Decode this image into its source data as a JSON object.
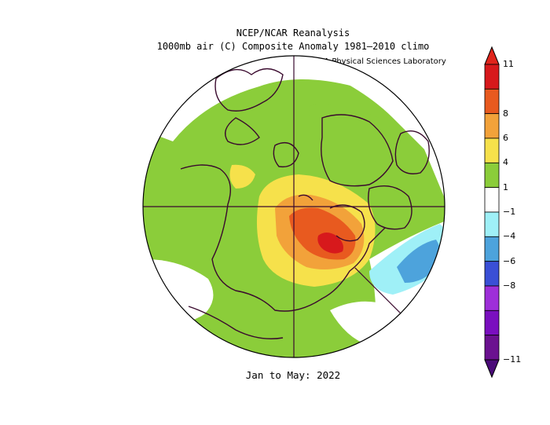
{
  "title": {
    "line1": "NCEP/NCAR Reanalysis",
    "line2": "1000mb air (C) Composite Anomaly 1981–2010 climo"
  },
  "credit": "NOAA Physical Sciences Laboratory",
  "period": "Jan to May: 2022",
  "colorbar": {
    "levels": [
      {
        "label": "11",
        "color": "#d7191c"
      },
      {
        "label": "8",
        "color": "#e85a1f"
      },
      {
        "label": "6",
        "color": "#f2a23a"
      },
      {
        "label": "4",
        "color": "#f6e14b"
      },
      {
        "label": "1",
        "color": "#8bcd3a"
      },
      {
        "label": "−1",
        "color": "#ffffff"
      },
      {
        "label": "−4",
        "color": "#9ff0f7"
      },
      {
        "label": "−6",
        "color": "#4da3dc"
      },
      {
        "label": "−8",
        "color": "#3a4fd6"
      },
      {
        "label": "−11",
        "color": "#9e2fd9"
      }
    ],
    "top_arrow_color": "#e0251c",
    "bottom_arrow_color": "#4a0a78",
    "extra_colors": [
      "#7a0fbf",
      "#6b1190"
    ]
  },
  "map": {
    "projection": "north polar stereographic",
    "background_anomaly_color": "#8bcd3a",
    "neutral_color": "#ffffff",
    "warm_colors": [
      "#f6e14b",
      "#f2a23a",
      "#e85a1f",
      "#d7191c"
    ],
    "cold_colors": [
      "#9ff0f7",
      "#4da3dc"
    ],
    "coastline_color": "#3a0a2e"
  }
}
